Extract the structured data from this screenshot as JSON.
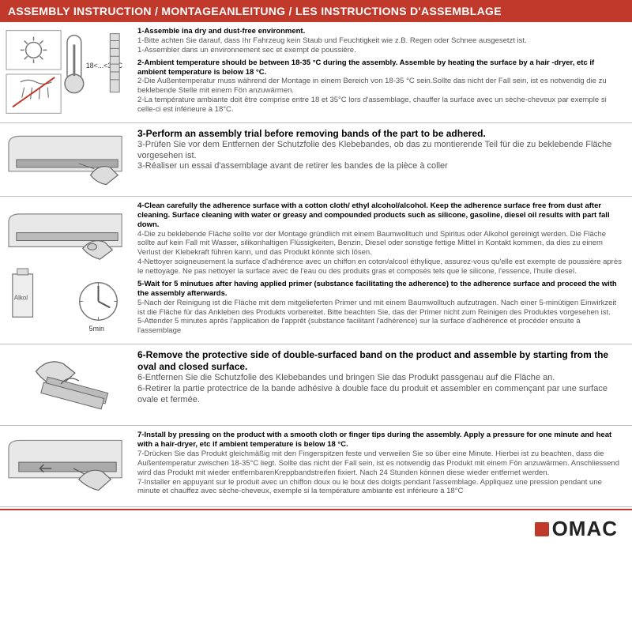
{
  "colors": {
    "accent": "#c0392b",
    "border": "#bfbfbf",
    "text": "#333333",
    "muted": "#555555",
    "icon_stroke": "#666666",
    "icon_fill": "#dddddd"
  },
  "header": "ASSEMBLY INSTRUCTION / MONTAGEANLEITUNG / LES INSTRUCTIONS D'ASSEMBLAGE",
  "steps": [
    {
      "groups": [
        {
          "bold": "1-Assemble ina dry and dust-free environment.",
          "lines": [
            "1-Bitte achten Sie darauf, dass Ihr Fahrzeug kein Staub und Feuchtigkeit wie z.B. Regen oder Schnee ausgesetzt ist.",
            "1-Assembler dans un environnement sec et exempt de poussière."
          ]
        },
        {
          "bold": "2-Ambient temperature should be between 18-35 °C  during the assembly. Assemble by heating the surface by a hair -dryer, etc if ambient temperature is below 18 °C.",
          "lines": [
            "2-Die Außentemperatur muss während der Montage in einem Bereich von 18-35 °C  sein.Sollte das nicht der Fall sein, ist es notwendig die zu beklebende Stelle mit einem Fön anzuwärmen.",
            "2-La température ambiante doit être comprise entre 18 et 35°C lors d'assemblage, chauffer la surface avec un sèche-cheveux par exemple si celle-ci est inférieure à 18°C."
          ]
        }
      ]
    },
    {
      "groups": [
        {
          "bold": "3-Perform an assembly trial before removing bands of the part to be adhered.",
          "lines": [
            "3-Prüfen Sie vor dem Entfernen der Schutzfolie des Klebebandes, ob das zu montierende Teil für die zu beklebende Fläche vorgesehen ist.",
            "3-Réaliser un essai d'assemblage avant de retirer les bandes de la pièce à coller"
          ],
          "boldSize": "12px",
          "plainSize": "11px"
        }
      ]
    },
    {
      "groups": [
        {
          "bold": "4-Clean carefully the adherence surface with a cotton cloth/ ethyl alcohol/alcohol. Keep the adherence surface free from dust after cleaning. Surface cleaning with water or greasy and compounded products such as silicone, gasoline, diesel oil results with part fall down.",
          "lines": [
            "4-Die zu beklebende Fläche sollte vor der Montage gründlich mit einem Baumwolltuch und Spiritus oder Alkohol gereinigt werden. Die Fläche sollte auf kein Fall mit Wasser, silikonhaltigen Flüssigkeiten, Benzin, Diesel oder sonstige fettige Mittel in Kontakt kommen, da dies zu einem Verlust der Klebekraft führen kann, und das Produkt könnte sich lösen.",
            "4-Nettoyer soigneusement la surface d'adhérence avec un chiffon en coton/alcool éthylique, assurez-vous qu'elle est exempte de poussière après le nettoyage. Ne pas nettoyer la surface avec de l'eau ou des produits gras et composés tels que le silicone, l'essence, l'huile diesel."
          ]
        },
        {
          "bold": "5-Wait for 5 minutues after having applied primer (substance facilitating the adherence) to the adherence surface and proceed the with the assembly afterwards.",
          "lines": [
            "5-Nach der Reinigung ist die Fläche mit dem mitgelieferten Primer und mit einem Baumwolltuch aufzutragen. Nach einer 5-minütigen Einwirkzeit ist die Fläche für das Ankleben des Produkts vorbereitet. Bitte beachten Sie, das der Primer nicht zum Reinigen des Produktes vorgesehen ist.",
            "5-Attender 5 minutes après l'application de l'apprêt (substance facilitant l'adhérence) sur la surface d'adhérence et procéder ensuite à l'assemblage"
          ]
        }
      ]
    },
    {
      "groups": [
        {
          "bold": "6-Remove the protective side of double-surfaced band on the product and assemble by starting from the oval and closed surface.",
          "lines": [
            "6-Entfernen Sie die Schutzfolie des Klebebandes und bringen Sie das Produkt passgenau auf die Fläche an.",
            "6-Retirer la partie protectrice de la bande adhésive à double face du produit et assembler en commençant par une surface ovale et fermée."
          ],
          "boldSize": "12px",
          "plainSize": "11px"
        }
      ]
    },
    {
      "groups": [
        {
          "bold": "7-Install by pressing on the product with a smooth cloth or finger tips during the assembly. Apply a pressure for one minute and heat with a hair-dryer, etc if ambient temperature is below 18 °C.",
          "lines": [
            "7-Drücken Sie das Produkt gleichmäßig mit den Fingerspitzen feste und verweilen Sie so über eine Minute. Hierbei ist zu beachten, dass die Außentemperatur zwischen 18-35°C liegt. Sollte das nicht der Fall sein, ist es notwendig das Produkt mit einem Fön anzuwärmen. Anschliessend wird das Produkt mit wieder entfernbarenKreppbandstreifen fixiert. Nach 24 Stunden können diese wieder entfernet werden.",
            "7-Installer en appuyant sur le produit avec un chiffon doux ou le bout des doigts pendant l'assemblage. Appliquez une pression pendant une minute et chauffez avec sèche-cheveux, exemple si la température ambiante est inférieure à 18°C"
          ]
        }
      ]
    }
  ],
  "logo": "OMAC",
  "icons": {
    "temp_label": "18<...<35 C",
    "bottle_label": "Alkol",
    "timer_label": "5min"
  }
}
